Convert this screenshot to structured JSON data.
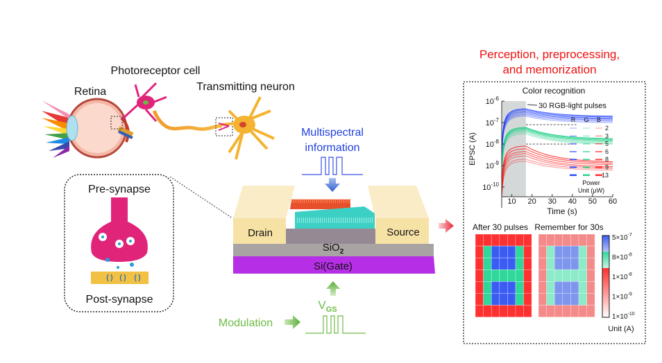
{
  "left": {
    "retina_label": "Retina",
    "photoreceptor_label": "Photoreceptor cell",
    "neuron_label": "Transmitting neuron",
    "pre_synapse_label": "Pre-synapse",
    "post_synapse_label": "Post-synapse"
  },
  "device": {
    "input_label_line1": "Multispectral",
    "input_label_line2": "information",
    "drain_label": "Drain",
    "source_label": "Source",
    "oxide_label": "SiO",
    "oxide_subscript": "2",
    "gate_label": "Si(Gate)",
    "vgs_label": "V",
    "vgs_subscript": "GS",
    "modulation_label": "Modulation",
    "colors": {
      "input": "#1f3fe0",
      "modulation": "#6dbb45",
      "gate": "#9b2fef",
      "electrode": "#f7e2a6"
    }
  },
  "right": {
    "title_line1": "Perception, preprocessing,",
    "title_line2": "and memorization",
    "title_color": "#ee1111"
  },
  "chart_data": [
    {
      "type": "line",
      "title": "Color recognition",
      "xlabel": "Time (s)",
      "ylabel": "EPSC (A)",
      "xlim": [
        5,
        60
      ],
      "ylim": [
        4e-11,
        1e-06
      ],
      "yscale": "log",
      "xticks": [
        "10",
        "20",
        "30",
        "40",
        "50",
        "60"
      ],
      "yticks": [
        {
          "base": "10",
          "exp": "-6"
        },
        {
          "base": "10",
          "exp": "-7"
        },
        {
          "base": "10",
          "exp": "-8"
        },
        {
          "base": "10",
          "exp": "-9"
        },
        {
          "base": "10",
          "exp": "-10"
        }
      ],
      "annotation": "30 RGB-light pulses",
      "pulse_window_s": [
        5,
        17
      ],
      "threshold_lines": [
        8e-08,
        1e-08
      ],
      "legend": {
        "columns": [
          "R",
          "G",
          "B"
        ],
        "powers": [
          "2",
          "3",
          "5",
          "6",
          "8",
          "9",
          "13"
        ],
        "caption_line1": "Power",
        "caption_line2": "Unit (μW)"
      },
      "series": [
        {
          "color": "#1f3fff",
          "peak_at_17s": [
            2e-07,
            2.3e-07,
            2.6e-07,
            3e-07,
            3.4e-07,
            3.9e-07,
            4.4e-07
          ],
          "value_at_60s": [
            1e-07,
            1.15e-07,
            1.3e-07,
            1.45e-07,
            1.6e-07,
            1.8e-07,
            2e-07
          ]
        },
        {
          "color": "#1ecf86",
          "peak_at_17s": [
            3e-08,
            3.5e-08,
            4e-08,
            4.5e-08,
            5e-08,
            5.5e-08,
            6e-08
          ],
          "value_at_60s": [
            1e-08,
            1.1e-08,
            1.25e-08,
            1.4e-08,
            1.5e-08,
            1.65e-08,
            1.8e-08
          ]
        },
        {
          "color": "#ff1a1a",
          "peak_at_17s": [
            1.6e-09,
            2e-09,
            2.8e-09,
            3.6e-09,
            4.5e-09,
            6e-09,
            8e-09
          ],
          "value_at_60s": [
            6e-10,
            7e-10,
            8e-10,
            9e-10,
            1.1e-09,
            1.3e-09,
            1.5e-09
          ]
        }
      ]
    },
    {
      "type": "heatmap",
      "panels": [
        {
          "title": "After 30 pulses",
          "cells": [
            [
              "R",
              "R",
              "R",
              "R",
              "R",
              "R",
              "R"
            ],
            [
              "R",
              "G",
              "B",
              "B",
              "B",
              "G",
              "R"
            ],
            [
              "R",
              "G",
              "B",
              "B",
              "B",
              "G",
              "R"
            ],
            [
              "R",
              "G",
              "G",
              "G",
              "G",
              "G",
              "R"
            ],
            [
              "R",
              "G",
              "B",
              "B",
              "B",
              "G",
              "R"
            ],
            [
              "R",
              "G",
              "B",
              "B",
              "B",
              "G",
              "R"
            ],
            [
              "R",
              "R",
              "R",
              "R",
              "R",
              "R",
              "R"
            ]
          ]
        },
        {
          "title": "Remember for 30s",
          "cells": [
            [
              "r",
              "r",
              "r",
              "r",
              "r",
              "r",
              "r"
            ],
            [
              "r",
              "g",
              "b",
              "b",
              "b",
              "g",
              "r"
            ],
            [
              "r",
              "g",
              "b",
              "b",
              "b",
              "g",
              "r"
            ],
            [
              "r",
              "g",
              "g",
              "g",
              "g",
              "g",
              "r"
            ],
            [
              "r",
              "g",
              "b",
              "b",
              "b",
              "g",
              "r"
            ],
            [
              "r",
              "g",
              "b",
              "b",
              "b",
              "g",
              "r"
            ],
            [
              "r",
              "r",
              "r",
              "r",
              "r",
              "r",
              "r"
            ]
          ]
        }
      ],
      "cell_colors": {
        "R": "#ff3030",
        "G": "#2fd89a",
        "B": "#3a5cf5",
        "r": "#f58a8a",
        "g": "#8cebc8",
        "b": "#7f96ee"
      },
      "colorbar": {
        "ticks": [
          {
            "mant": "5×10",
            "exp": "-7"
          },
          {
            "mant": "8×10",
            "exp": "-8"
          },
          {
            "mant": "1×10",
            "exp": "-8"
          },
          {
            "mant": "1×10",
            "exp": "-9"
          },
          {
            "mant": "1×10",
            "exp": "-10"
          }
        ],
        "unit_label": "Unit (A)"
      }
    }
  ]
}
